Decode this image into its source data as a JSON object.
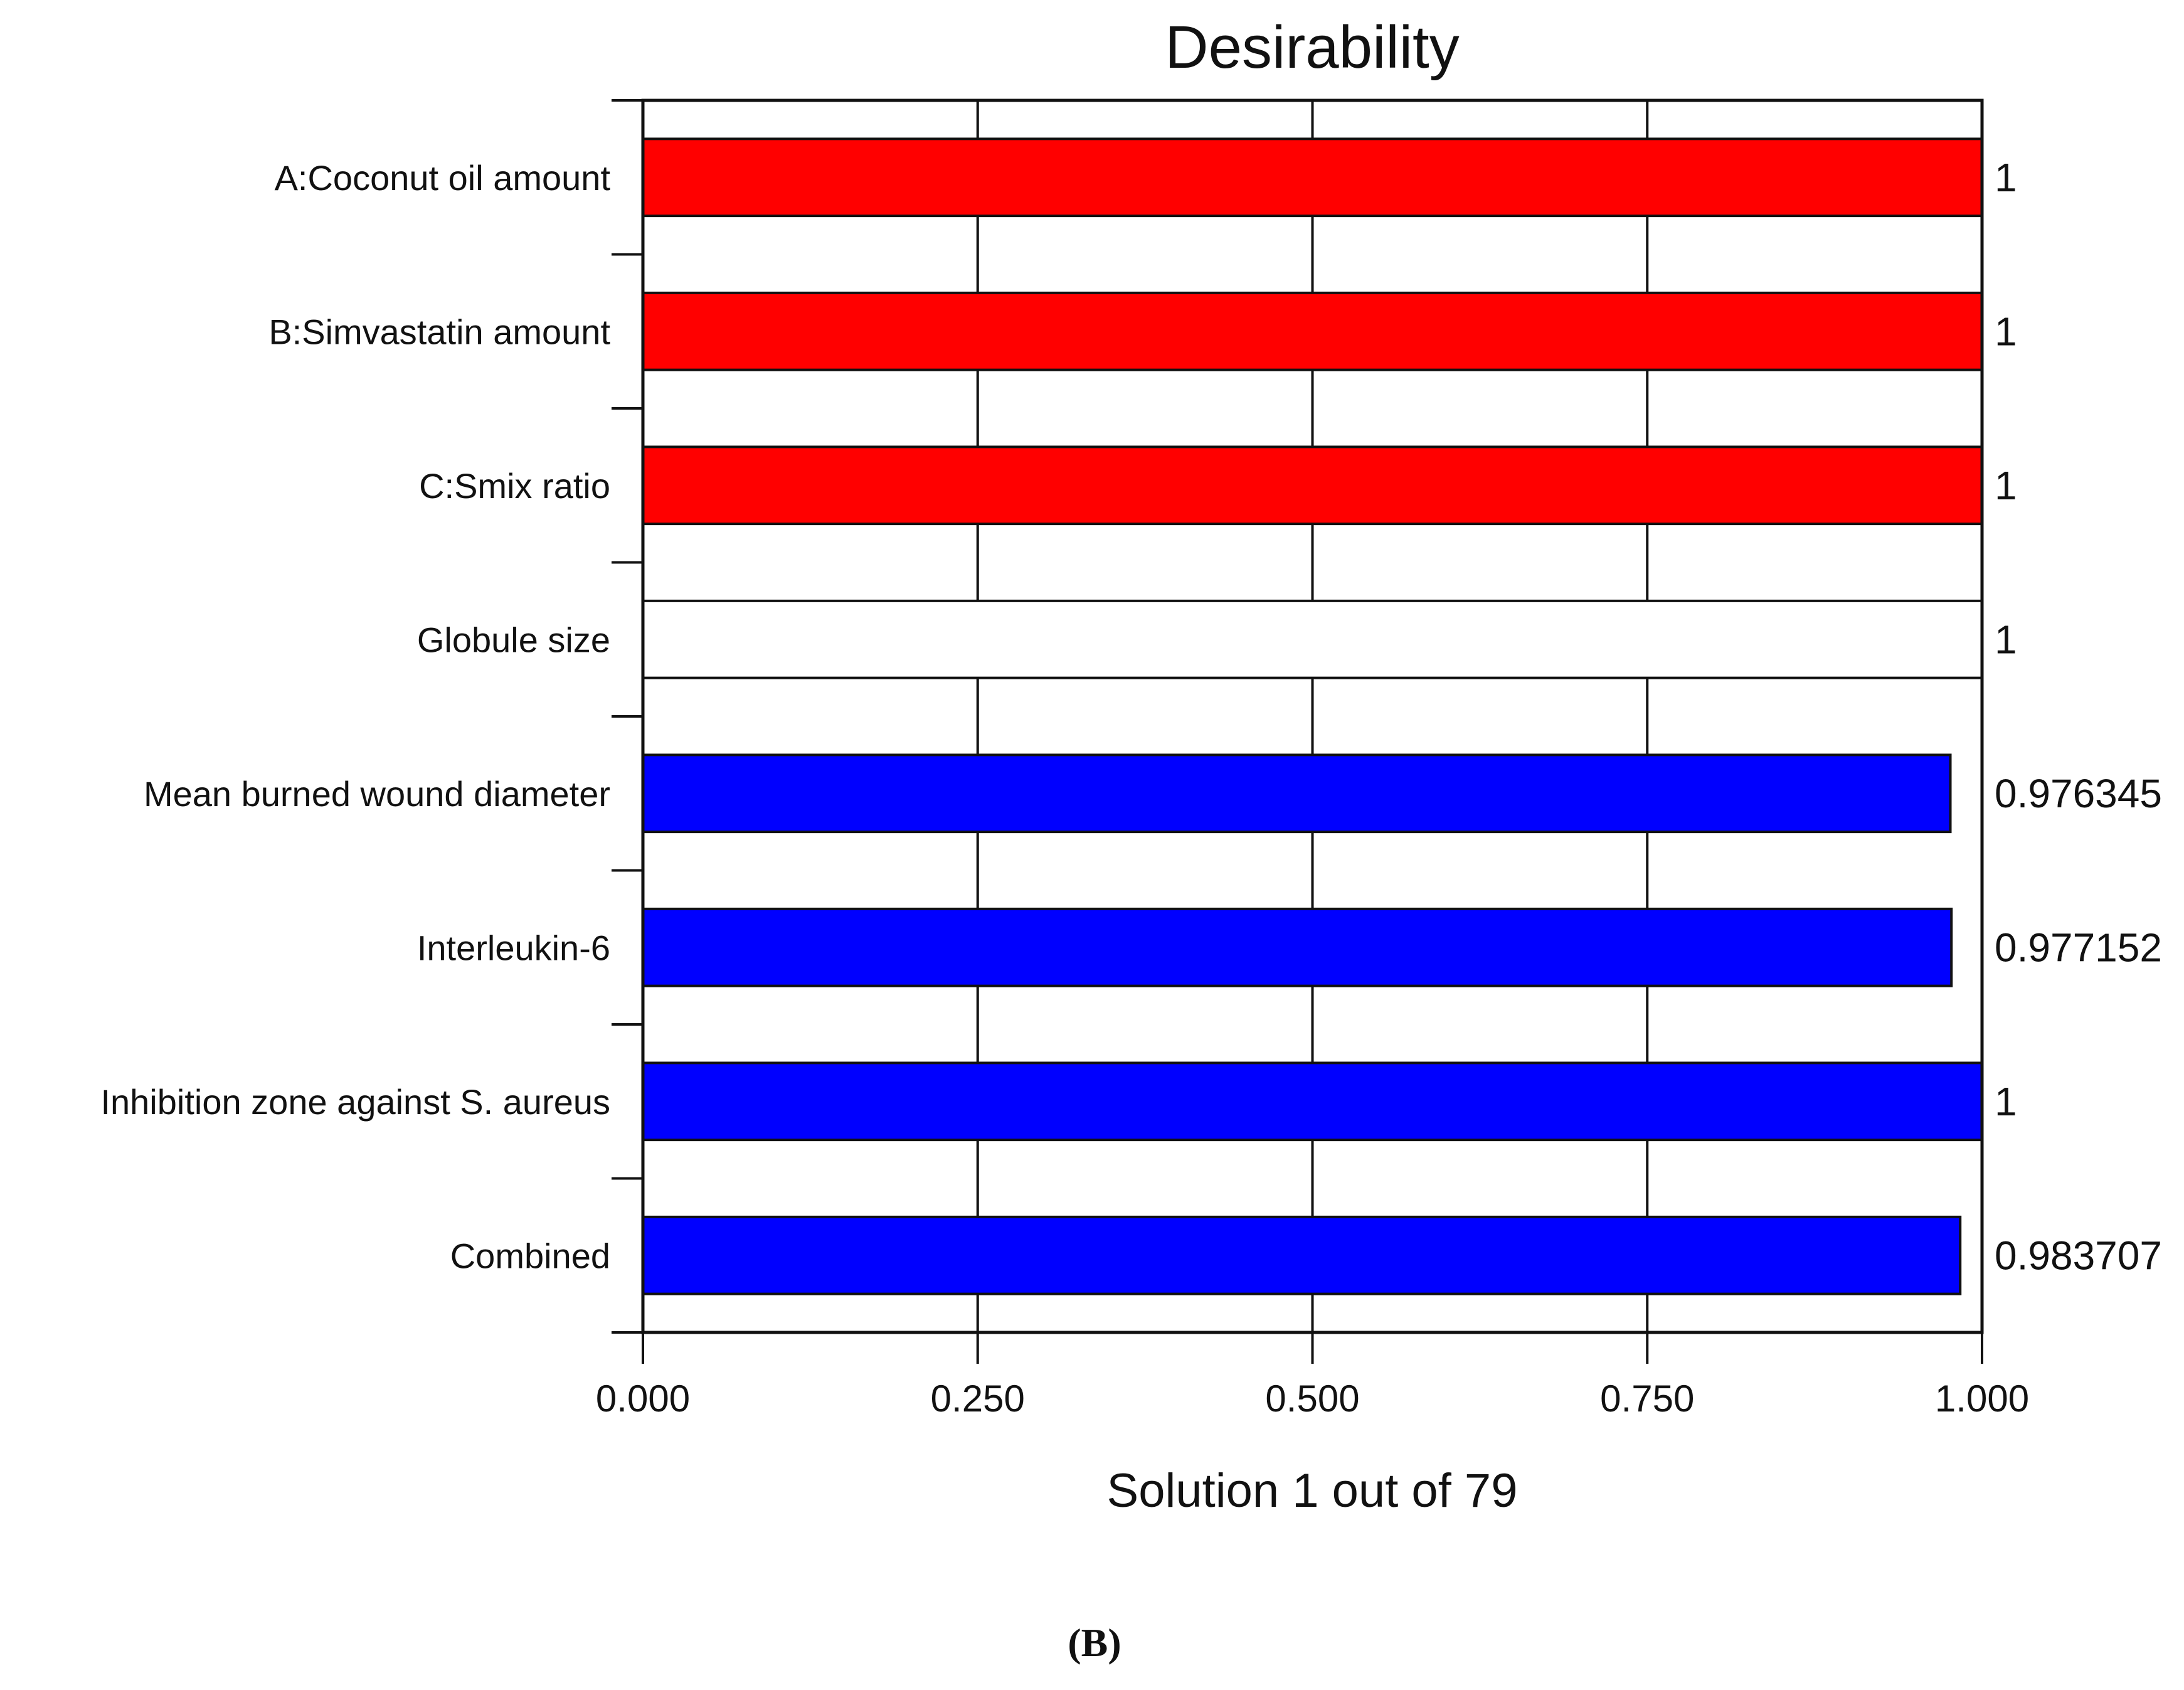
{
  "chart_data": {
    "type": "bar",
    "orientation": "horizontal",
    "title": "Desirability",
    "xlabel": "Solution 1 out of 79",
    "panel_label": "(B)",
    "xlim": [
      0,
      1
    ],
    "x_ticks": [
      "0.000",
      "0.250",
      "0.500",
      "0.750",
      "1.000"
    ],
    "grid": true,
    "categories": [
      "A:Coconut oil amount",
      "B:Simvastatin amount",
      "C:Smix ratio",
      "Globule size",
      "Mean burned wound diameter",
      "Interleukin-6",
      "Inhibition zone against S. aureus",
      "Combined"
    ],
    "values": [
      1,
      1,
      1,
      1,
      0.976345,
      0.977152,
      1,
      0.983707
    ],
    "value_labels": [
      "1",
      "1",
      "1",
      "1",
      "0.976345",
      "0.977152",
      "1",
      "0.983707"
    ],
    "bar_colors": [
      "#ff0000",
      "#ff0000",
      "#ff0000",
      "#ffffff",
      "#0000ff",
      "#0000ff",
      "#0000ff",
      "#0000ff"
    ]
  }
}
